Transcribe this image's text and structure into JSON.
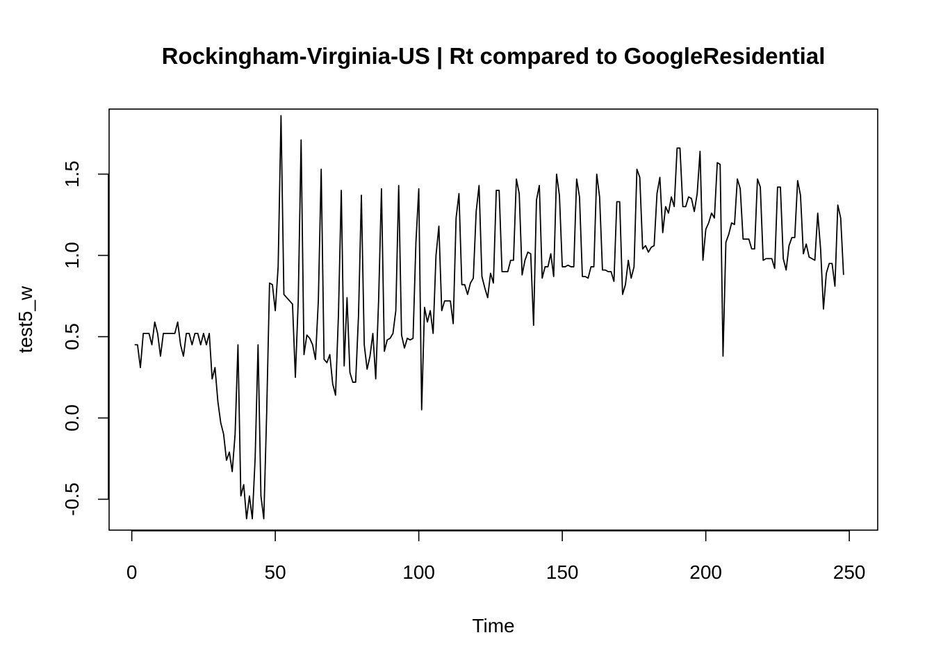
{
  "chart_data": {
    "type": "line",
    "title": "Rockingham-Virginia-US | Rt compared to GoogleResidential",
    "xlabel": "Time",
    "ylabel": "test5_w",
    "xlim": [
      -7.9,
      259.9
    ],
    "ylim": [
      -0.69,
      1.9
    ],
    "x_ticks": [
      0,
      50,
      100,
      150,
      200,
      250
    ],
    "y_ticks": [
      -0.5,
      0.0,
      0.5,
      1.0,
      1.5
    ],
    "x_tick_labels": [
      "0",
      "50",
      "100",
      "150",
      "200",
      "250"
    ],
    "y_tick_labels": [
      "-0.5",
      "0.0",
      "0.5",
      "1.0",
      "1.5"
    ],
    "grid": false,
    "line_color": "#000000",
    "series": [
      {
        "x": [
          1,
          2,
          3,
          4,
          5,
          6,
          7,
          8,
          9,
          10,
          11,
          12,
          13,
          14,
          15,
          16,
          17,
          18,
          19,
          20,
          21,
          22,
          23,
          24,
          25,
          26,
          27,
          28,
          29,
          30,
          31,
          32,
          33,
          34,
          35,
          36,
          37,
          38,
          39,
          40,
          41,
          42,
          43,
          44,
          45,
          46,
          47,
          48,
          49,
          50,
          51,
          52,
          53,
          54,
          55,
          56,
          57,
          58,
          59,
          60,
          61,
          62,
          63,
          64,
          65,
          66,
          67,
          68,
          69,
          70,
          71,
          72,
          73,
          74,
          75,
          76,
          77,
          78,
          79,
          80,
          81,
          82,
          83,
          84,
          85,
          86,
          87,
          88,
          89,
          90,
          91,
          92,
          93,
          94,
          95,
          96,
          97,
          98,
          99,
          100,
          101,
          102,
          103,
          104,
          105,
          106,
          107,
          108,
          109,
          110,
          111,
          112,
          113,
          114,
          115,
          116,
          117,
          118,
          119,
          120,
          121,
          122,
          123,
          124,
          125,
          126,
          127,
          128,
          129,
          130,
          131,
          132,
          133,
          134,
          135,
          136,
          137,
          138,
          139,
          140,
          141,
          142,
          143,
          144,
          145,
          146,
          147,
          148,
          149,
          150,
          151,
          152,
          153,
          154,
          155,
          156,
          157,
          158,
          159,
          160,
          161,
          162,
          163,
          164,
          165,
          166,
          167,
          168,
          169,
          170,
          171,
          172,
          173,
          174,
          175,
          176,
          177,
          178,
          179,
          180,
          181,
          182,
          183,
          184,
          185,
          186,
          187,
          188,
          189,
          190,
          191,
          192,
          193,
          194,
          195,
          196,
          197,
          198,
          199,
          200,
          201,
          202,
          203,
          204,
          205,
          206,
          207,
          208,
          209,
          210,
          211,
          212,
          213,
          214,
          215,
          216,
          217,
          218,
          219,
          220,
          221,
          222,
          223,
          224,
          225,
          226,
          227,
          228,
          229,
          230,
          231,
          232,
          233,
          234,
          235,
          236,
          237,
          238,
          239,
          240,
          241,
          242,
          243,
          244,
          245,
          246,
          247,
          248
        ],
        "values": [
          0.45,
          0.45,
          0.31,
          0.52,
          0.52,
          0.52,
          0.45,
          0.59,
          0.52,
          0.38,
          0.52,
          0.52,
          0.52,
          0.52,
          0.52,
          0.59,
          0.45,
          0.38,
          0.52,
          0.52,
          0.45,
          0.52,
          0.52,
          0.45,
          0.52,
          0.45,
          0.52,
          0.24,
          0.31,
          0.1,
          -0.03,
          -0.1,
          -0.26,
          -0.21,
          -0.33,
          -0.1,
          0.45,
          -0.48,
          -0.41,
          -0.62,
          -0.48,
          -0.62,
          -0.24,
          0.45,
          -0.48,
          -0.62,
          0.03,
          0.83,
          0.82,
          0.66,
          0.93,
          1.86,
          0.76,
          0.74,
          0.72,
          0.7,
          0.25,
          0.72,
          1.71,
          0.39,
          0.51,
          0.49,
          0.45,
          0.36,
          0.72,
          1.53,
          0.36,
          0.34,
          0.39,
          0.21,
          0.14,
          0.63,
          1.4,
          0.32,
          0.74,
          0.28,
          0.22,
          0.22,
          0.63,
          1.37,
          0.45,
          0.3,
          0.38,
          0.52,
          0.24,
          0.72,
          1.41,
          0.41,
          0.48,
          0.49,
          0.52,
          0.66,
          1.43,
          0.51,
          0.43,
          0.49,
          0.48,
          0.49,
          1.08,
          1.41,
          0.05,
          0.68,
          0.59,
          0.66,
          0.52,
          1.0,
          1.18,
          0.66,
          0.72,
          0.72,
          0.72,
          0.58,
          1.23,
          1.38,
          0.82,
          0.82,
          0.76,
          0.83,
          0.86,
          1.27,
          1.43,
          0.87,
          0.8,
          0.74,
          0.89,
          0.83,
          1.4,
          1.4,
          0.9,
          0.9,
          0.9,
          0.97,
          0.97,
          1.47,
          1.38,
          0.88,
          0.97,
          1.02,
          1.01,
          0.57,
          1.34,
          1.43,
          0.86,
          0.93,
          0.93,
          1.01,
          0.87,
          1.5,
          1.37,
          0.93,
          0.93,
          0.94,
          0.93,
          0.93,
          1.47,
          1.36,
          0.87,
          0.87,
          0.86,
          0.93,
          0.93,
          1.5,
          1.36,
          0.91,
          0.91,
          0.9,
          0.9,
          0.84,
          1.33,
          1.33,
          0.76,
          0.82,
          0.97,
          0.86,
          0.93,
          1.53,
          1.48,
          1.04,
          1.06,
          1.02,
          1.05,
          1.06,
          1.38,
          1.48,
          1.14,
          1.3,
          1.26,
          1.36,
          1.3,
          1.66,
          1.66,
          1.3,
          1.3,
          1.36,
          1.35,
          1.27,
          1.38,
          1.64,
          0.97,
          1.16,
          1.2,
          1.26,
          1.23,
          1.57,
          1.56,
          0.38,
          1.08,
          1.13,
          1.2,
          1.19,
          1.47,
          1.41,
          1.1,
          1.1,
          1.1,
          1.04,
          1.04,
          1.47,
          1.42,
          0.97,
          0.98,
          0.98,
          0.98,
          0.92,
          1.42,
          1.42,
          0.98,
          0.91,
          1.06,
          1.11,
          1.11,
          1.46,
          1.37,
          1.01,
          1.07,
          0.99,
          0.98,
          0.97,
          1.26,
          1.04,
          0.67,
          0.89,
          0.95,
          0.95,
          0.81,
          1.31,
          1.23,
          0.88
        ]
      }
    ]
  }
}
